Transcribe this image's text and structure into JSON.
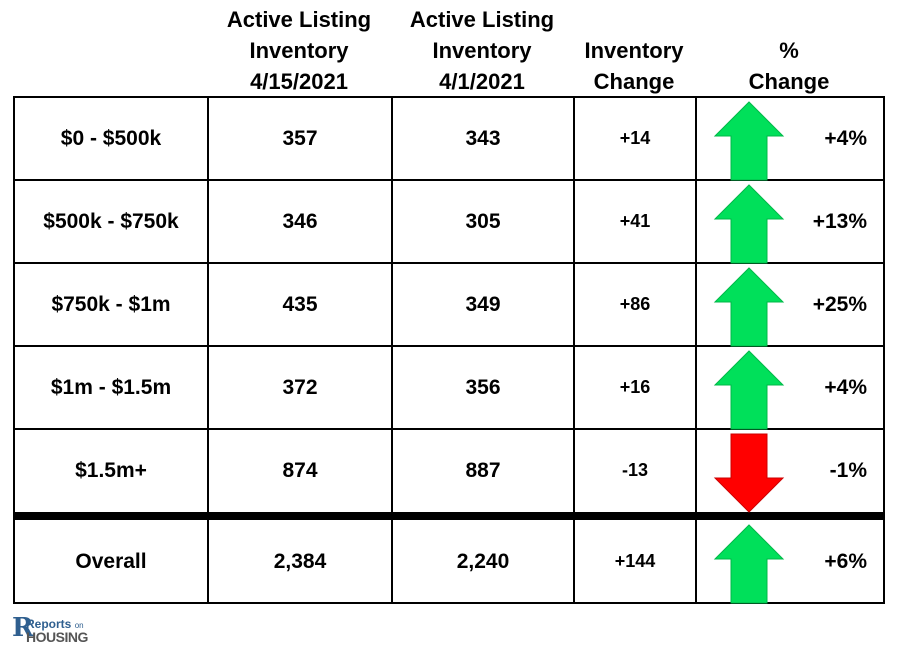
{
  "chart_data": {
    "type": "table",
    "columns": [
      "",
      "Active Listing\nInventory\n4/15/2021",
      "Active Listing\nInventory\n4/1/2021",
      "Inventory\nChange",
      "%\nChange"
    ],
    "rows": [
      {
        "label": "$0 - $500k",
        "current": "357",
        "previous": "343",
        "change": "+14",
        "pct": "+4%",
        "direction": "up"
      },
      {
        "label": "$500k - $750k",
        "current": "346",
        "previous": "305",
        "change": "+41",
        "pct": "+13%",
        "direction": "up"
      },
      {
        "label": "$750k - $1m",
        "current": "435",
        "previous": "349",
        "change": "+86",
        "pct": "+25%",
        "direction": "up"
      },
      {
        "label": "$1m - $1.5m",
        "current": "372",
        "previous": "356",
        "change": "+16",
        "pct": "+4%",
        "direction": "up"
      },
      {
        "label": "$1.5m+",
        "current": "874",
        "previous": "887",
        "change": "-13",
        "pct": "-1%",
        "direction": "down"
      },
      {
        "label": "Overall",
        "current": "2,384",
        "previous": "2,240",
        "change": "+144",
        "pct": "+6%",
        "direction": "up"
      }
    ],
    "colors": {
      "up": "#00e05a",
      "down": "#ff0000"
    }
  },
  "logo": {
    "text_top": "Reports",
    "text_small": "on",
    "text_bottom": "HOUSING"
  }
}
